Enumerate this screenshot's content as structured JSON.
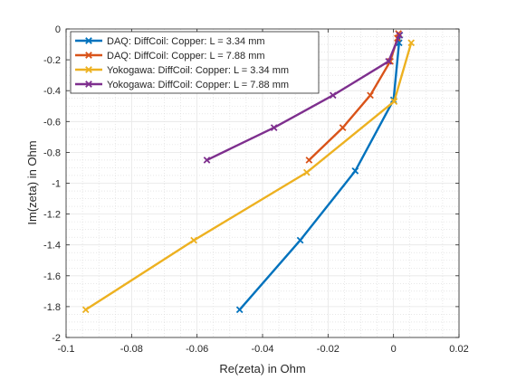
{
  "chart_data": {
    "type": "line",
    "title": "",
    "xlabel": "Re(zeta) in Ohm",
    "ylabel": "Im(zeta) in Ohm",
    "xlim": [
      -0.1,
      0.02
    ],
    "ylim": [
      -2,
      0
    ],
    "xticks": [
      -0.1,
      -0.08,
      -0.06,
      -0.04,
      -0.02,
      0,
      0.02
    ],
    "xtick_labels": [
      "-0.1",
      "-0.08",
      "-0.06",
      "-0.04",
      "-0.02",
      "0",
      "0.02"
    ],
    "yticks": [
      -2,
      -1.8,
      -1.6,
      -1.4,
      -1.2,
      -1,
      -0.8,
      -0.6,
      -0.4,
      -0.2,
      0
    ],
    "ytick_labels": [
      "-2",
      "-1.8",
      "-1.6",
      "-1.4",
      "-1.2",
      "-1",
      "-0.8",
      "-0.6",
      "-0.4",
      "-0.2",
      "0"
    ],
    "grid": true,
    "minor_grid": true,
    "legend_position": "top-left",
    "marker": "x",
    "series": [
      {
        "name": "DAQ: DiffCoil: Copper: L = 3.34 mm",
        "color": "#0072BD",
        "x": [
          -0.047,
          -0.0285,
          -0.0117,
          0.0,
          0.0017,
          0.0019
        ],
        "y": [
          -1.82,
          -1.37,
          -0.92,
          -0.46,
          -0.09,
          -0.04
        ]
      },
      {
        "name": "DAQ: DiffCoil: Copper: L = 7.88 mm",
        "color": "#D95319",
        "x": [
          -0.0258,
          -0.0155,
          -0.0071,
          -0.001,
          0.0012,
          0.0015
        ],
        "y": [
          -0.85,
          -0.64,
          -0.43,
          -0.21,
          -0.06,
          -0.03
        ]
      },
      {
        "name": "Yokogawa: DiffCoil: Copper: L = 3.34 mm",
        "color": "#EDB120",
        "x": [
          -0.094,
          -0.061,
          -0.0265,
          0.0002,
          0.0054
        ],
        "y": [
          -1.82,
          -1.37,
          -0.93,
          -0.47,
          -0.09
        ]
      },
      {
        "name": "Yokogawa: DiffCoil: Copper: L = 7.88 mm",
        "color": "#7E2F8E",
        "x": [
          -0.057,
          -0.0365,
          -0.0185,
          -0.0015,
          0.0018
        ],
        "y": [
          -0.85,
          -0.64,
          -0.43,
          -0.21,
          -0.04
        ]
      }
    ]
  }
}
